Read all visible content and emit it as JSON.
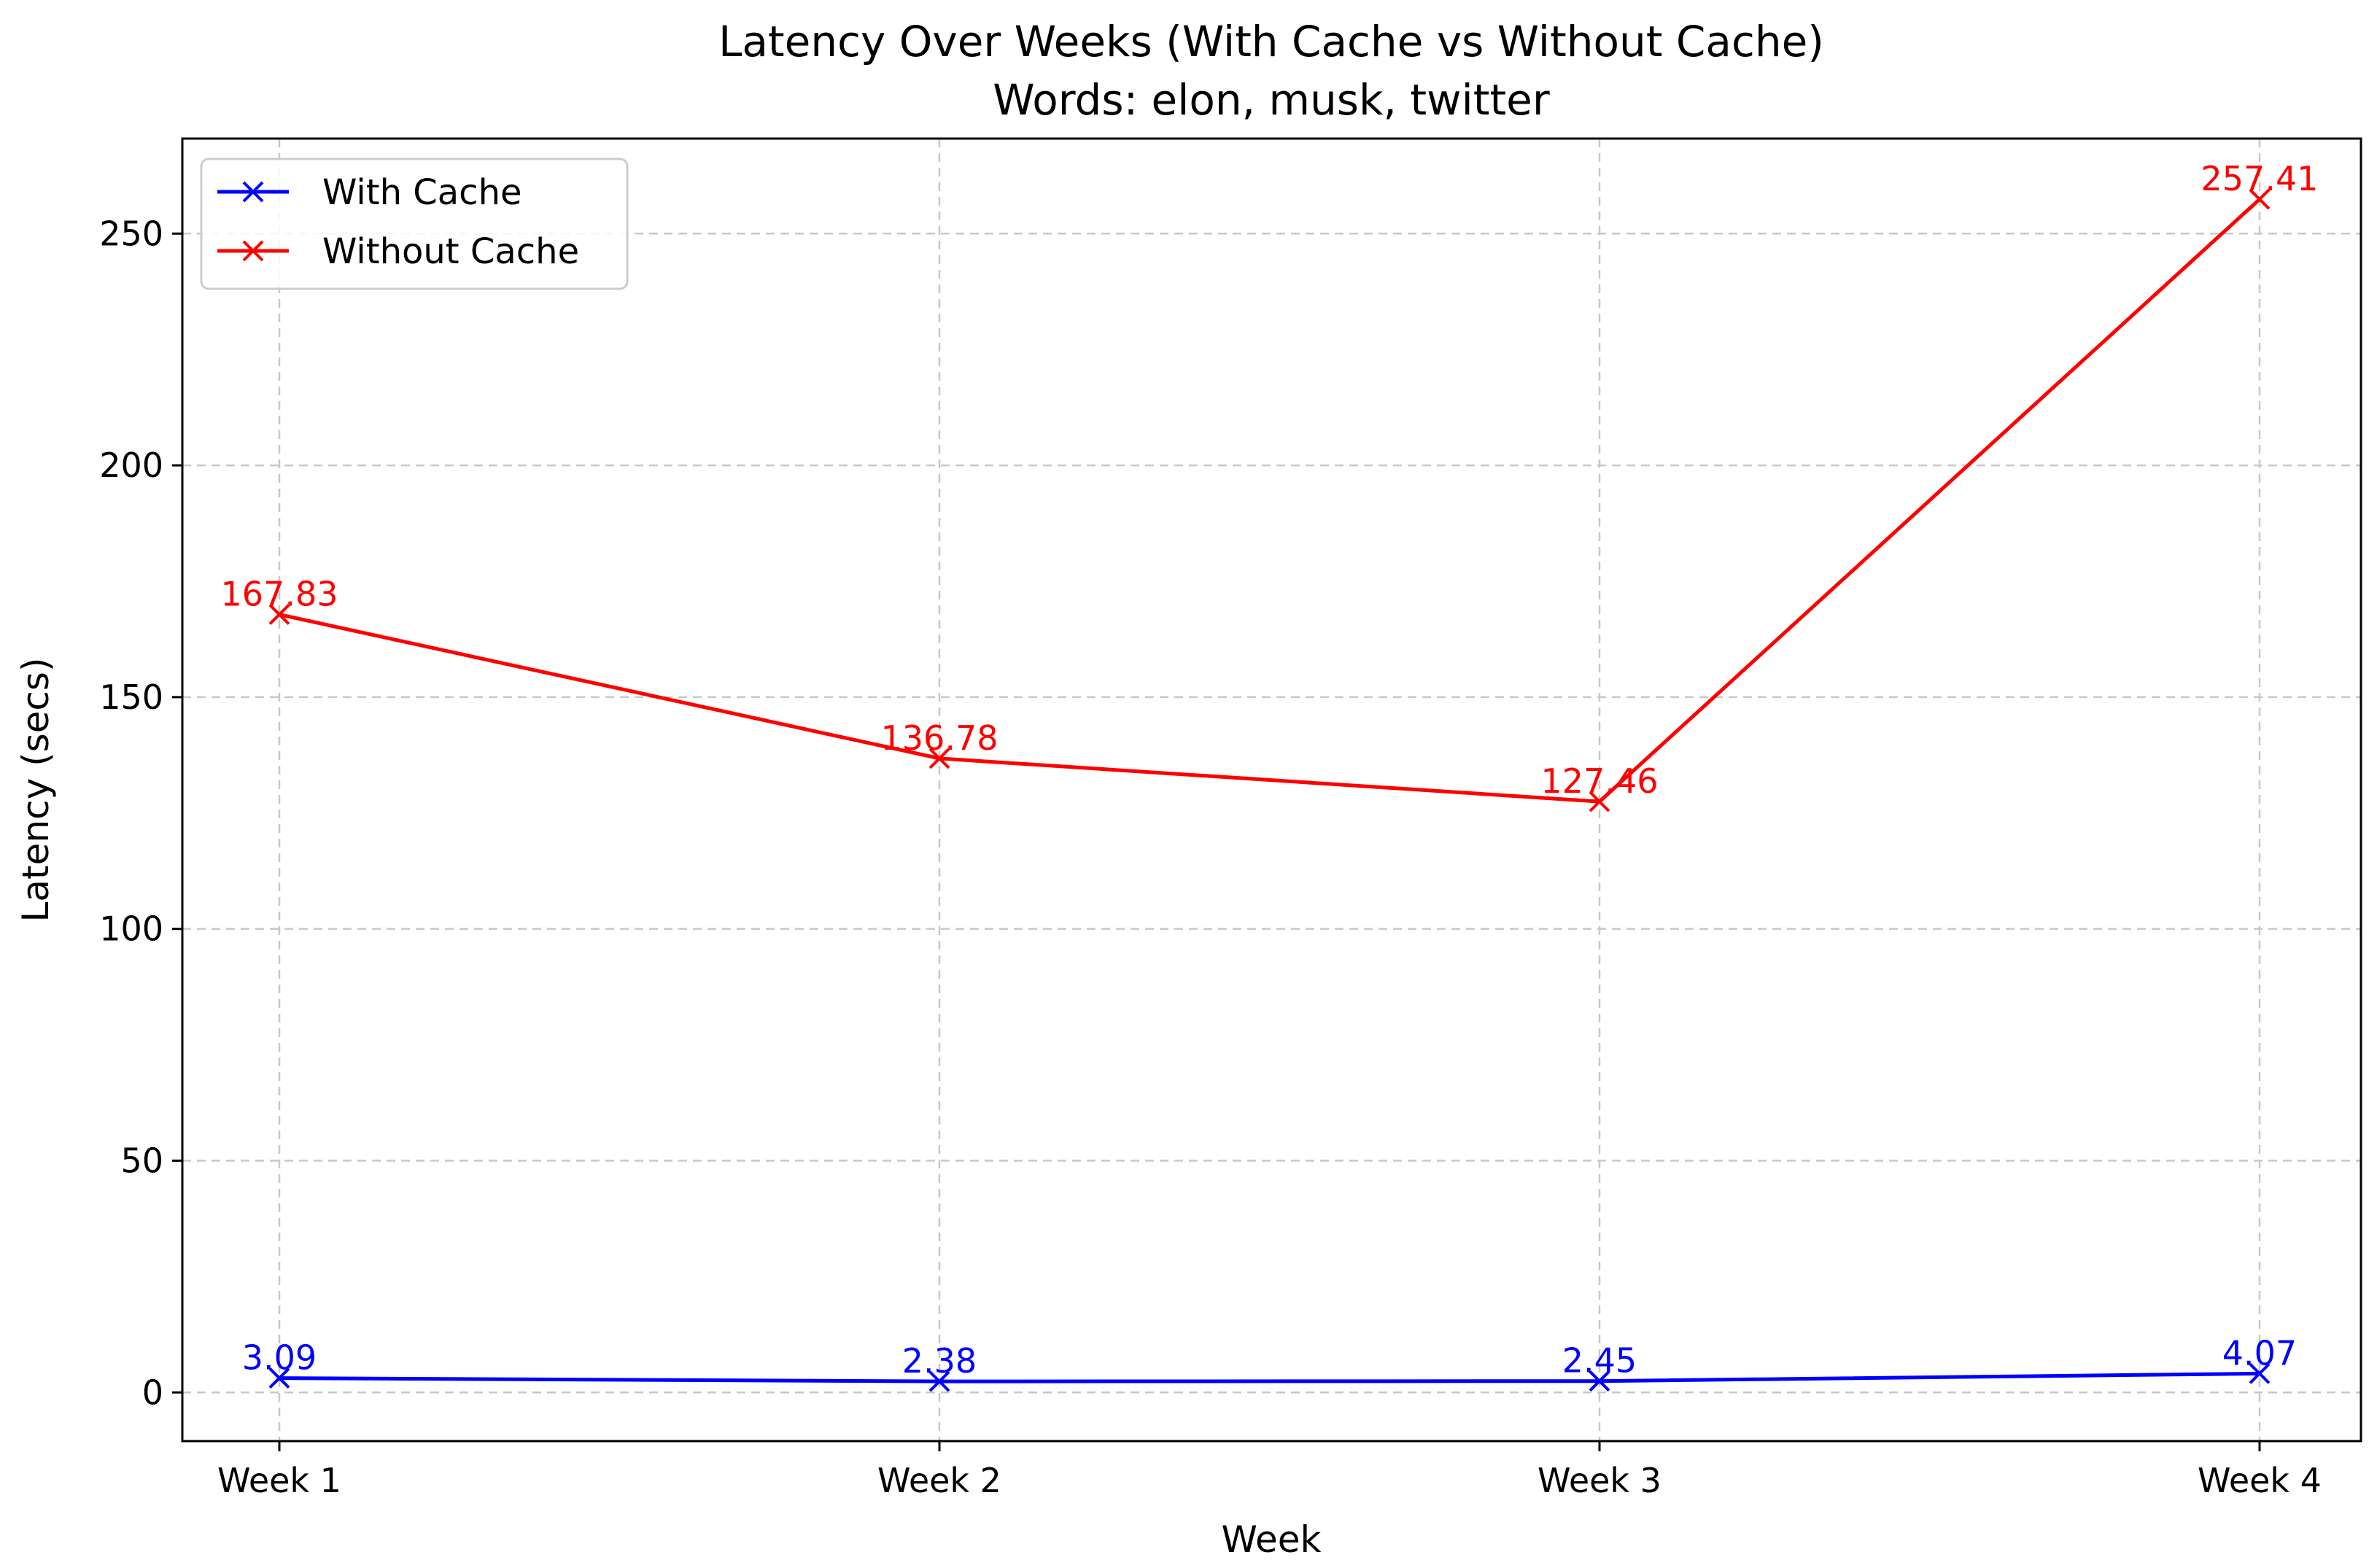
{
  "chart_data": {
    "type": "line",
    "title": "Latency Over Weeks (With Cache vs Without Cache)",
    "subtitle": "Words: elon, musk, twitter",
    "xlabel": "Week",
    "ylabel": "Latency (secs)",
    "categories": [
      "Week 1",
      "Week 2",
      "Week 3",
      "Week 4"
    ],
    "ylim": [
      -10.5,
      270.5
    ],
    "yticks": [
      0,
      50,
      100,
      150,
      200,
      250
    ],
    "grid": true,
    "legend_position": "top-left",
    "marker": "x",
    "series": [
      {
        "name": "With Cache",
        "color": "#0000ff",
        "values": [
          3.09,
          2.38,
          2.45,
          4.07
        ],
        "labels": [
          "3.09",
          "2.38",
          "2.45",
          "4.07"
        ]
      },
      {
        "name": "Without Cache",
        "color": "#ff0000",
        "values": [
          167.83,
          136.78,
          127.46,
          257.41
        ],
        "labels": [
          "167.83",
          "136.78",
          "127.46",
          "257.41"
        ]
      }
    ]
  }
}
